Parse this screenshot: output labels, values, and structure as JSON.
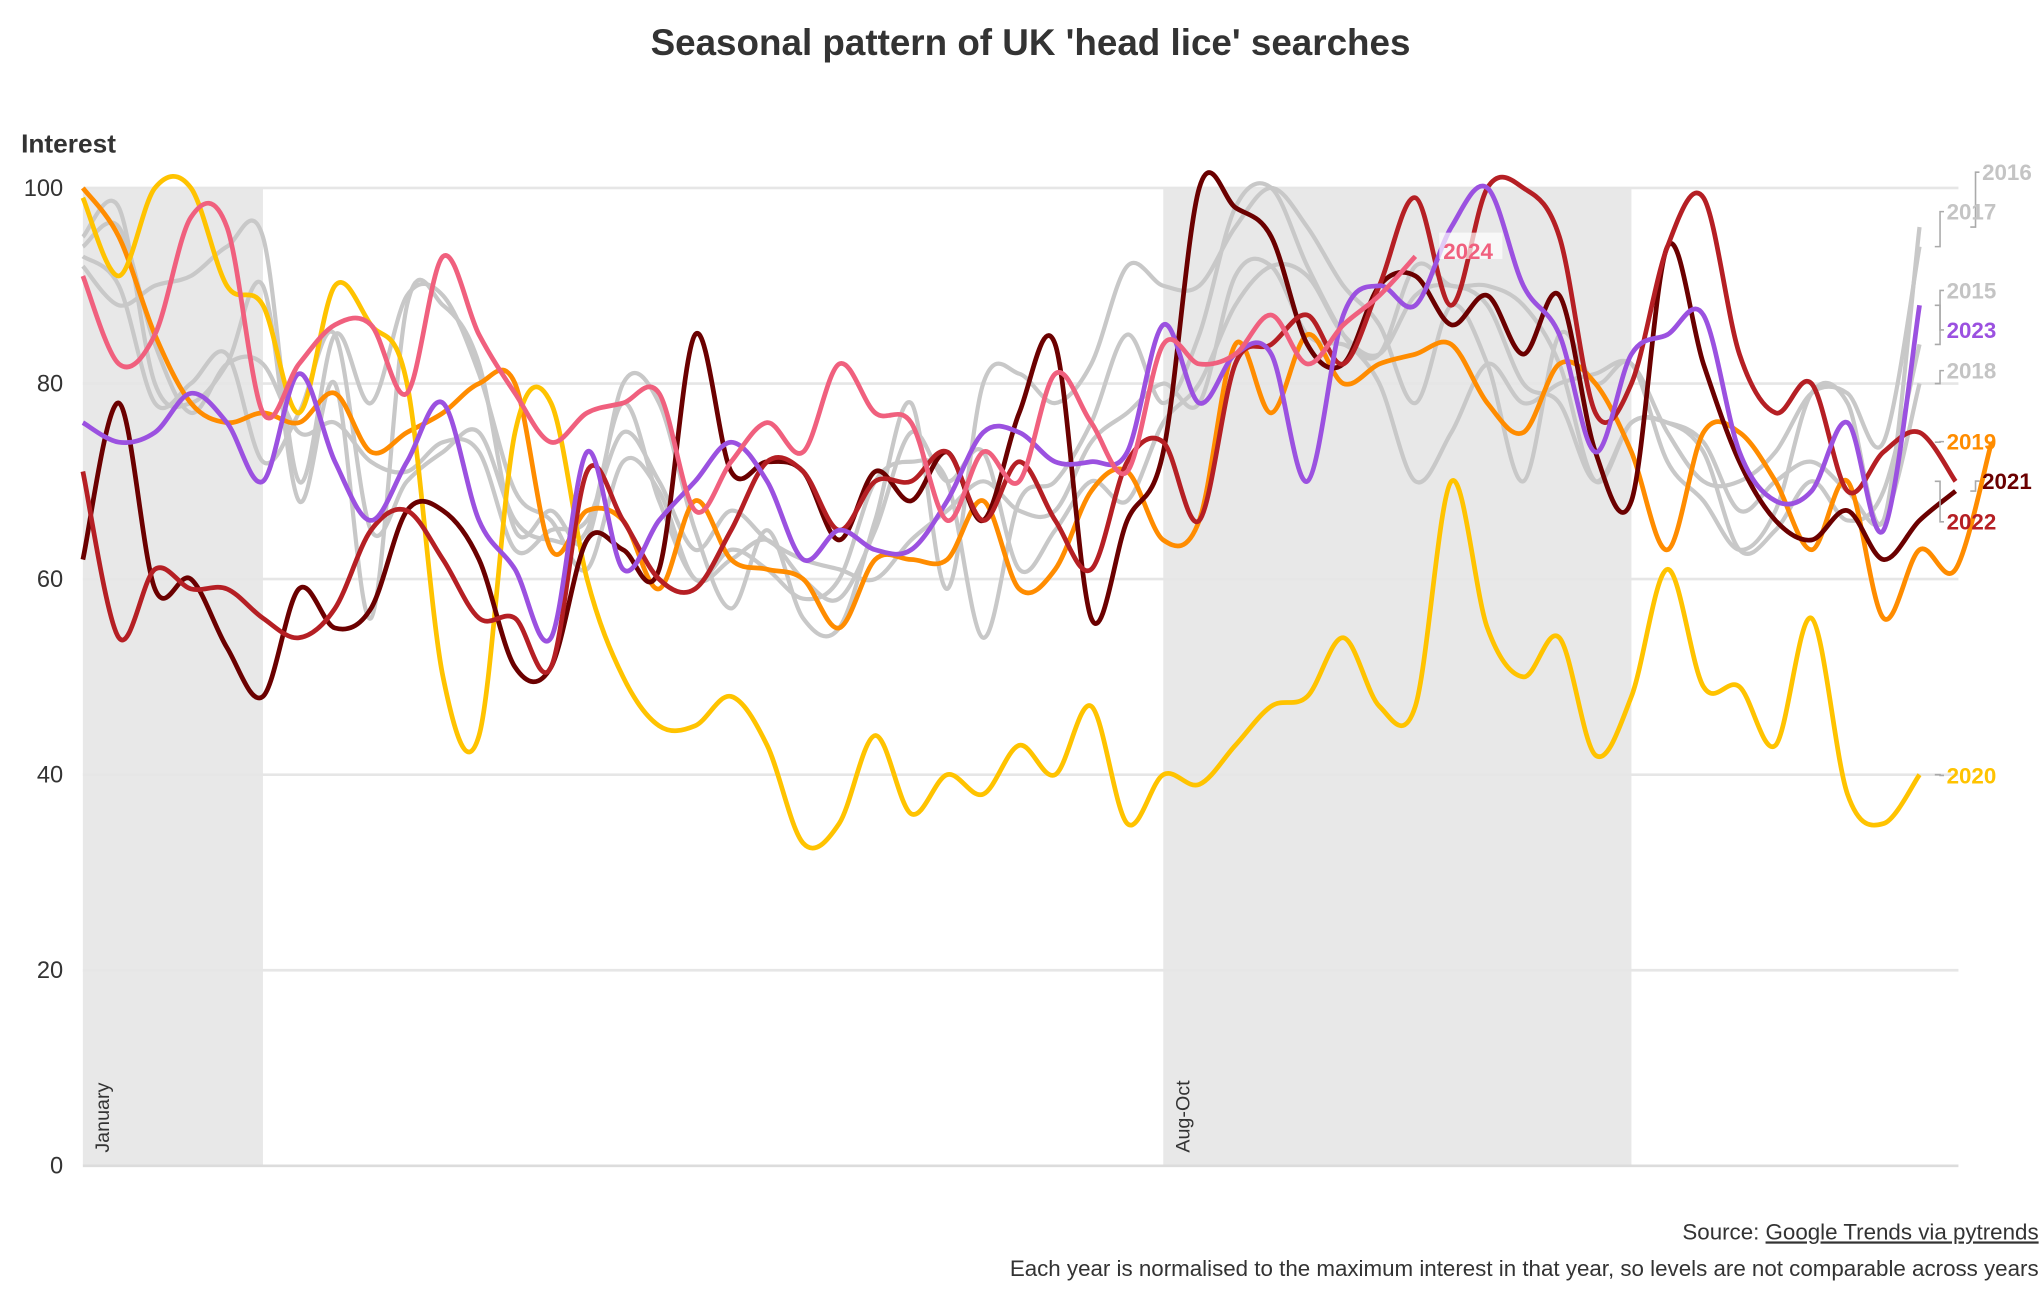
{
  "chart_data": {
    "type": "line",
    "title": "Seasonal pattern of UK 'head lice' searches",
    "ylabel": "Interest",
    "xlabel": "",
    "ylim": [
      0,
      100
    ],
    "yticks": [
      "0",
      "20",
      "40",
      "60",
      "80",
      "100"
    ],
    "grid": "horizontal",
    "x_unit": "week of year",
    "shaded_periods": [
      {
        "label": "January",
        "weeks": [
          1,
          5
        ]
      },
      {
        "label": "Aug-Oct",
        "weeks": [
          31,
          43
        ]
      }
    ],
    "series": [
      {
        "name": "2015",
        "color": "#c8c8c8",
        "values": [
          93,
          90,
          78,
          80,
          83,
          72,
          77,
          85,
          65,
          70,
          73,
          75,
          66,
          64,
          65,
          78,
          68,
          60,
          62,
          64,
          60,
          58,
          65,
          75,
          70,
          73,
          61,
          65,
          70,
          68,
          76,
          80,
          88,
          92,
          91,
          85,
          83,
          89,
          90,
          88,
          80,
          78,
          70,
          76,
          76,
          73,
          63,
          65,
          70,
          66,
          69,
          84
        ]
      },
      {
        "name": "2016",
        "color": "#c8c8c8",
        "values": [
          95,
          98,
          80,
          78,
          82,
          90,
          68,
          80,
          56,
          88,
          88,
          82,
          65,
          67,
          64,
          80,
          78,
          65,
          57,
          65,
          56,
          55,
          66,
          78,
          59,
          80,
          81,
          78,
          82,
          92,
          90,
          90,
          96,
          100,
          96,
          90,
          86,
          78,
          88,
          82,
          70,
          85,
          80,
          82,
          72,
          68,
          63,
          67,
          79,
          78,
          66,
          96
        ]
      },
      {
        "name": "2017",
        "color": "#c8c8c8",
        "values": [
          92,
          88,
          90,
          91,
          94,
          95,
          70,
          85,
          78,
          89,
          89,
          81,
          69,
          66,
          61,
          72,
          69,
          60,
          63,
          61,
          58,
          60,
          70,
          72,
          70,
          54,
          68,
          70,
          76,
          85,
          78,
          85,
          98,
          100,
          92,
          85,
          80,
          70,
          75,
          82,
          78,
          80,
          81,
          82,
          75,
          70,
          70,
          73,
          79,
          79,
          74,
          94
        ]
      },
      {
        "name": "2018",
        "color": "#c8c8c8",
        "values": [
          94,
          96,
          84,
          77,
          82,
          82,
          75,
          76,
          72,
          71,
          74,
          73,
          63,
          65,
          66,
          75,
          70,
          63,
          67,
          64,
          62,
          61,
          60,
          64,
          67,
          70,
          67,
          67,
          74,
          77,
          80,
          78,
          91,
          92,
          85,
          84,
          83,
          92,
          90,
          90,
          88,
          82,
          70,
          76,
          76,
          74,
          67,
          70,
          72,
          69,
          66,
          80
        ]
      },
      {
        "name": "2019",
        "color": "#ff8c00",
        "values": [
          100,
          95,
          85,
          78,
          76,
          77,
          76,
          79,
          73,
          75,
          77,
          80,
          80,
          63,
          67,
          66,
          59,
          68,
          62,
          61,
          60,
          55,
          62,
          62,
          62,
          68,
          59,
          61,
          69,
          71,
          64,
          66,
          84,
          77,
          85,
          80,
          82,
          83,
          84,
          78,
          75,
          82,
          80,
          73,
          63,
          75,
          75,
          70,
          63,
          70,
          56,
          63,
          61,
          74
        ]
      },
      {
        "name": "2020",
        "color": "#ffc300",
        "values": [
          99,
          91,
          100,
          100,
          90,
          88,
          77,
          90,
          86,
          80,
          50,
          44,
          75,
          78,
          60,
          50,
          45,
          45,
          48,
          43,
          33,
          35,
          44,
          36,
          40,
          38,
          43,
          40,
          47,
          35,
          40,
          39,
          43,
          47,
          48,
          54,
          47,
          47,
          70,
          55,
          50,
          54,
          42,
          48,
          61,
          49,
          49,
          43,
          56,
          38,
          35,
          40
        ]
      },
      {
        "name": "2021",
        "color": "#6b0000",
        "values": [
          62,
          78,
          59,
          60,
          53,
          48,
          59,
          55,
          57,
          67,
          67,
          62,
          51,
          51,
          64,
          63,
          61,
          85,
          71,
          72,
          71,
          64,
          71,
          68,
          73,
          66,
          77,
          84,
          56,
          66,
          73,
          100,
          98,
          95,
          84,
          82,
          90,
          91,
          86,
          89,
          83,
          89,
          73,
          68,
          94,
          82,
          72,
          66,
          64,
          67,
          62,
          66,
          69
        ]
      },
      {
        "name": "2022",
        "color": "#b51f24",
        "values": [
          71,
          54,
          61,
          59,
          59,
          56,
          54,
          57,
          65,
          67,
          62,
          56,
          56,
          51,
          71,
          66,
          60,
          59,
          65,
          72,
          71,
          65,
          70,
          70,
          73,
          66,
          72,
          66,
          61,
          72,
          74,
          66,
          82,
          84,
          87,
          82,
          90,
          99,
          88,
          100,
          100,
          95,
          77,
          80,
          94,
          99,
          83,
          77,
          80,
          69,
          73,
          75,
          70
        ]
      },
      {
        "name": "2023",
        "color": "#9b51e0",
        "values": [
          76,
          74,
          75,
          79,
          76,
          70,
          81,
          72,
          66,
          72,
          78,
          66,
          61,
          54,
          73,
          61,
          66,
          70,
          74,
          70,
          62,
          65,
          63,
          63,
          68,
          75,
          75,
          72,
          72,
          73,
          86,
          78,
          83,
          83,
          70,
          87,
          90,
          88,
          96,
          100,
          90,
          85,
          73,
          83,
          85,
          87,
          73,
          68,
          69,
          76,
          65,
          88
        ]
      },
      {
        "name": "2024",
        "color": "#f0607e",
        "values": [
          91,
          82,
          85,
          97,
          96,
          77,
          82,
          86,
          86,
          79,
          93,
          85,
          79,
          74,
          77,
          78,
          79,
          67,
          72,
          76,
          73,
          82,
          77,
          76,
          66,
          73,
          70,
          81,
          76,
          71,
          84,
          82,
          83,
          87,
          82,
          86,
          89,
          93
        ]
      }
    ]
  },
  "footer": {
    "source_prefix": "Source: ",
    "source_link": "Google Trends via pytrends",
    "note": "Each year is normalised to the maximum interest in that year, so levels are not comparable across years"
  }
}
